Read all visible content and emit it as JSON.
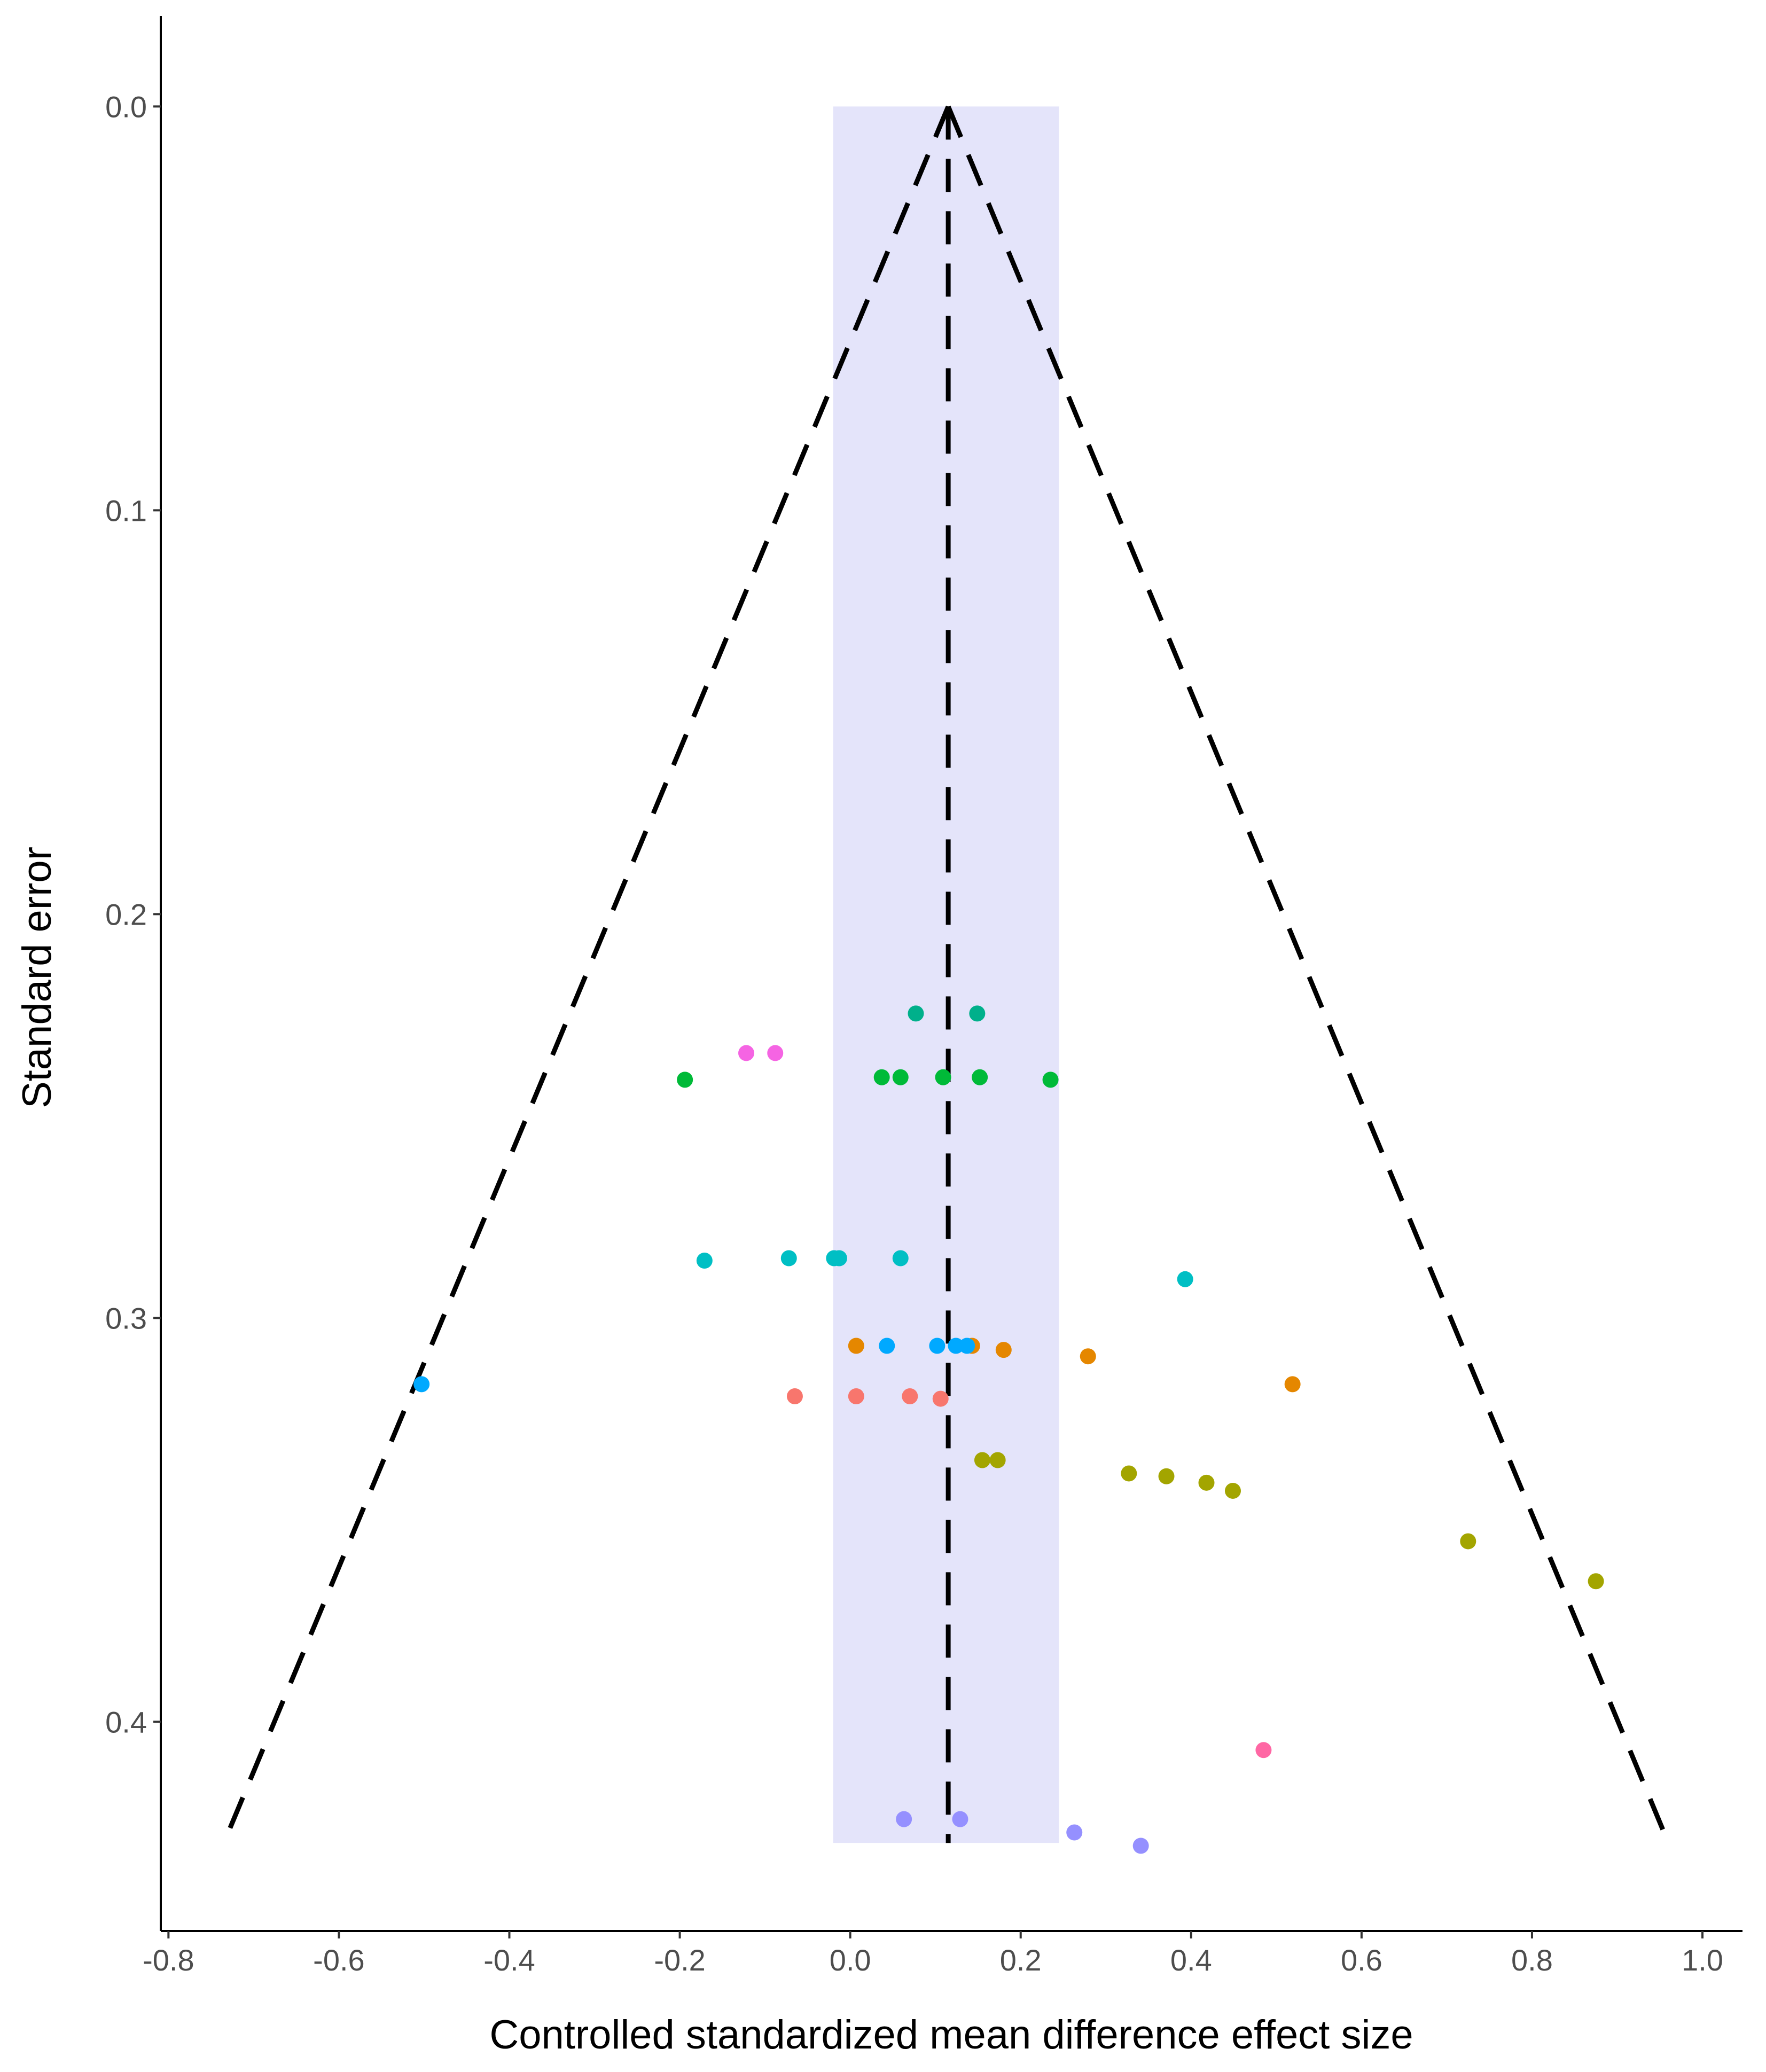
{
  "chart_data": {
    "type": "scatter",
    "x_label": "Controlled standardized mean difference effect size",
    "y_label": "Standard error",
    "xlim": [
      -0.809,
      1.047
    ],
    "ylim": [
      -0.0224,
      0.4518
    ],
    "y_reversed": true,
    "xticks": [
      -0.8,
      -0.6,
      -0.4,
      -0.2,
      {
        "value": 0,
        "label": "0.0"
      },
      0.2,
      0.4,
      0.6,
      0.8,
      {
        "value": 1,
        "label": "1.0"
      }
    ],
    "yticks": [
      {
        "value": 0,
        "label": "0.0"
      },
      0.1,
      0.2,
      0.3,
      0.4
    ],
    "band": {
      "xmin": -0.02,
      "xmax": 0.245,
      "ymin": 0,
      "ymax": 0.43,
      "color": "#e4e4fa"
    },
    "funnel": {
      "center": 0.115,
      "apex": 0,
      "se_max": 0.43,
      "lower_end": -0.735,
      "upper_end": 0.96,
      "color": "#000000"
    },
    "series": [
      {
        "color": "#00B08B",
        "x": [
          0.077,
          0.149
        ],
        "values": [
          0.2246,
          0.2246
        ]
      },
      {
        "color": "#F564E3",
        "x": [
          -0.122,
          -0.088
        ],
        "values": [
          0.2344,
          0.2344
        ]
      },
      {
        "color": "#00BA38",
        "x": [
          -0.194,
          0.037,
          0.059,
          0.109,
          0.152,
          0.235
        ],
        "values": [
          0.241,
          0.2404,
          0.2404,
          0.2404,
          0.2404,
          0.241
        ]
      },
      {
        "color": "#00BFC4",
        "x": [
          -0.171,
          -0.072,
          -0.019,
          -0.013,
          0.059,
          0.393
        ],
        "values": [
          0.2858,
          0.2852,
          0.2852,
          0.2852,
          0.2852,
          0.2904
        ]
      },
      {
        "color": "#E58700",
        "x": [
          0.007,
          0.143,
          0.18,
          0.279,
          0.519
        ],
        "values": [
          0.3069,
          0.3069,
          0.3079,
          0.3095,
          0.3164
        ]
      },
      {
        "color": "#00A9FF",
        "x": [
          -0.503,
          0.043,
          0.102,
          0.124,
          0.137
        ],
        "values": [
          0.3164,
          0.3069,
          0.3069,
          0.3069,
          0.3069
        ]
      },
      {
        "color": "#F8766D",
        "x": [
          -0.065,
          0.007,
          0.07,
          0.106
        ],
        "values": [
          0.3194,
          0.3194,
          0.3194,
          0.32
        ]
      },
      {
        "color": "#A3A500",
        "x": [
          0.155,
          0.173,
          0.327,
          0.371,
          0.418,
          0.449,
          0.725,
          0.875
        ],
        "values": [
          0.3352,
          0.3352,
          0.3385,
          0.3392,
          0.3408,
          0.3428,
          0.3553,
          0.3652
        ]
      },
      {
        "color": "#FF67A4",
        "x": [
          0.485
        ],
        "values": [
          0.407
        ]
      },
      {
        "color": "#9590FF",
        "x": [
          0.063,
          0.129,
          0.263,
          0.341
        ],
        "values": [
          0.4241,
          0.4241,
          0.4274,
          0.4307
        ]
      }
    ]
  }
}
